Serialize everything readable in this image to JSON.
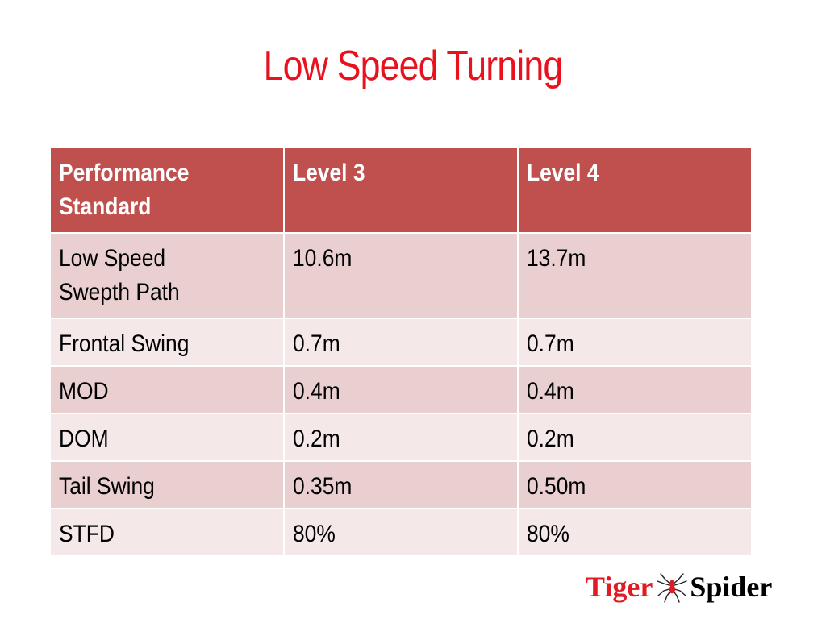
{
  "slide": {
    "title": "Low Speed Turning"
  },
  "table": {
    "headers": [
      "Performance Standard",
      "Level 3",
      "Level 4"
    ],
    "header_lines": [
      [
        "Performance",
        "Standard"
      ],
      [
        "Level 3"
      ],
      [
        "Level 4"
      ]
    ],
    "rows": [
      {
        "label": [
          "Low Speed",
          "Swepth Path"
        ],
        "level3": "10.6m",
        "level4": "13.7m"
      },
      {
        "label": [
          "Frontal Swing"
        ],
        "level3": "0.7m",
        "level4": "0.7m"
      },
      {
        "label": [
          "MOD"
        ],
        "level3": "0.4m",
        "level4": "0.4m"
      },
      {
        "label": [
          "DOM"
        ],
        "level3": "0.2m",
        "level4": "0.2m"
      },
      {
        "label": [
          "Tail Swing"
        ],
        "level3": "0.35m",
        "level4": "0.50m"
      },
      {
        "label": [
          "STFD"
        ],
        "level3": "80%",
        "level4": "80%"
      }
    ]
  },
  "logo": {
    "text_left": "Tiger",
    "text_right": "Spider",
    "icon": "spider-icon"
  },
  "colors": {
    "title": "#e8121f",
    "header_bg": "#c0504d",
    "row_odd_bg": "#e9cfd0",
    "row_even_bg": "#f4e8e8",
    "logo_red": "#e01b22"
  }
}
